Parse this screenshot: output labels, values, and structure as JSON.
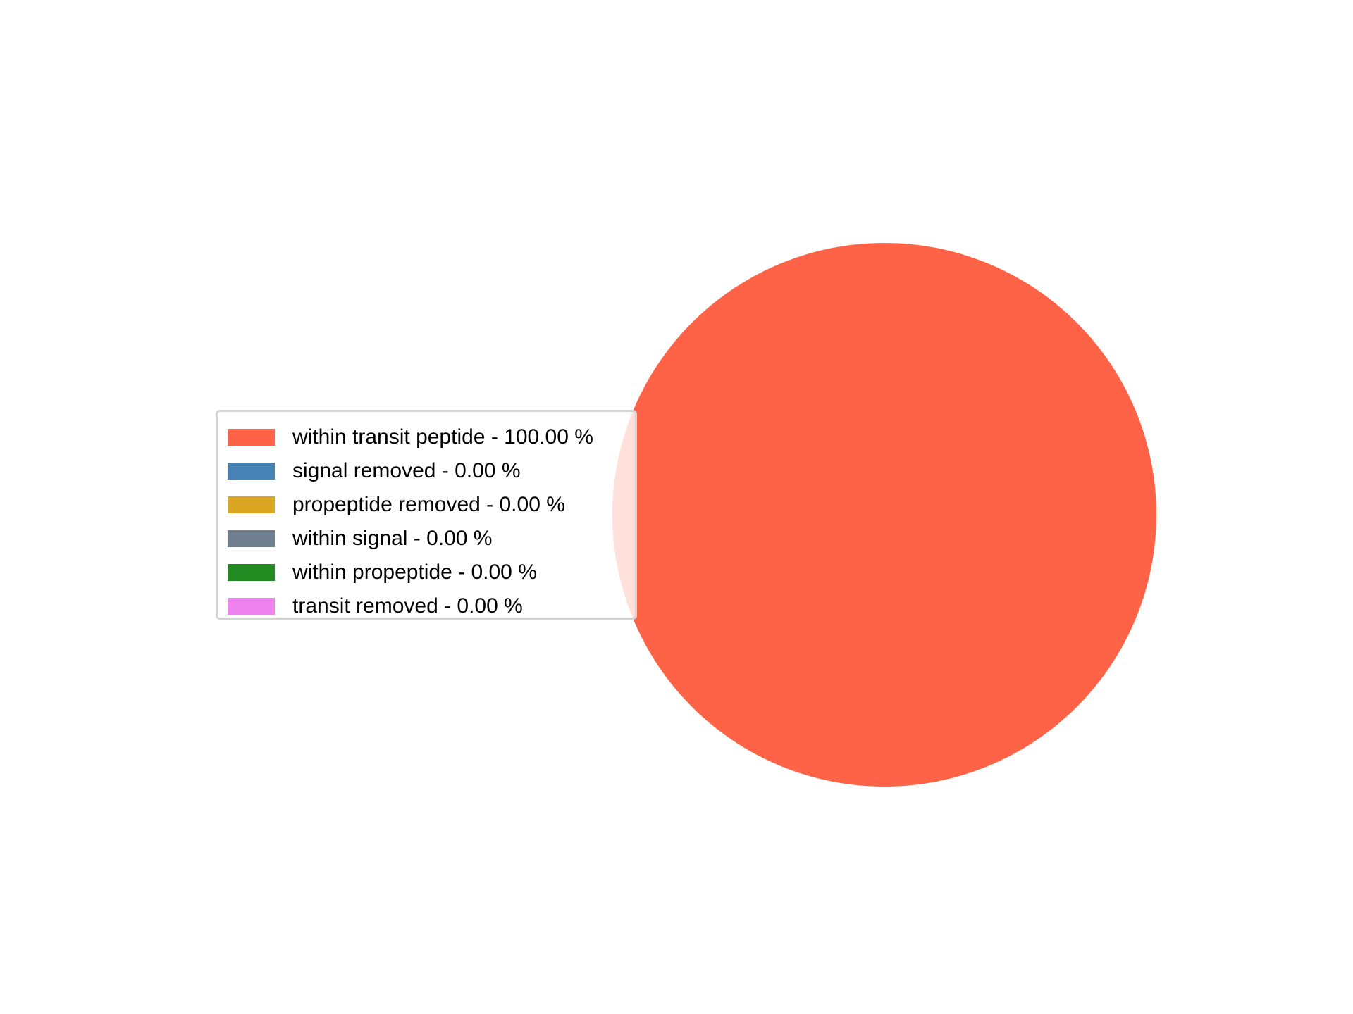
{
  "chart_data": {
    "type": "pie",
    "title": "",
    "legend_placement": "center-left",
    "categories": [
      "within transit peptide",
      "signal removed",
      "propeptide removed",
      "within signal",
      "within propeptide",
      "transit removed"
    ],
    "values": [
      100.0,
      0.0,
      0.0,
      0.0,
      0.0,
      0.0
    ],
    "colors": [
      "#ff6347",
      "#4682b4",
      "#daa520",
      "#708090",
      "#228b22",
      "#ee82ee"
    ],
    "legend_entries": [
      "within transit peptide - 100.00 %",
      "signal removed - 0.00 %",
      "propeptide removed - 0.00 %",
      "within signal - 0.00 %",
      "within propeptide - 0.00 %",
      "transit removed - 0.00 %"
    ]
  }
}
